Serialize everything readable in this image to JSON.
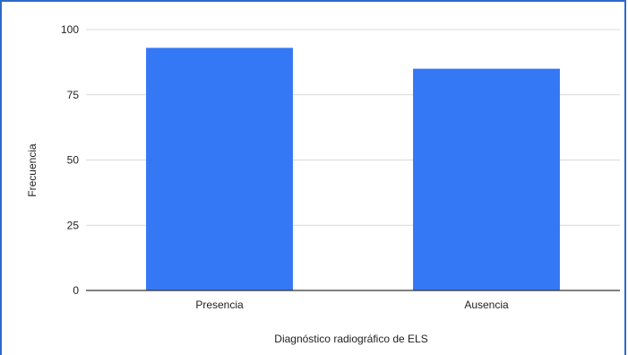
{
  "chart_data": {
    "type": "bar",
    "title": "",
    "xlabel": "Diagnóstico radiográfico de ELS",
    "ylabel": "Frecuencia",
    "categories": [
      "Presencia",
      "Ausencia"
    ],
    "values": [
      93,
      85
    ],
    "ylim": [
      0,
      100
    ],
    "yticks": [
      0,
      25,
      50,
      75,
      100
    ],
    "grid": true,
    "legend": "none",
    "colors": {
      "bar": "#3478f6",
      "grid": "#d9d9d9",
      "axis": "#333333",
      "frame": "#2f68c9"
    }
  }
}
